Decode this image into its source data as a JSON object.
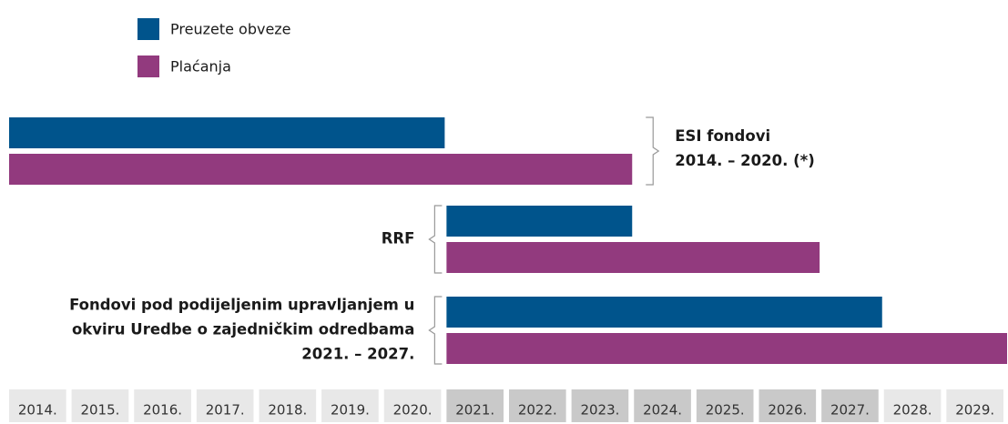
{
  "chart_data": {
    "type": "range-bar",
    "categories": [
      [
        "ESI fondovi",
        "2014. – 2020. (*)"
      ],
      [
        "RRF"
      ],
      [
        "Fondovi pod podijeljenim upravljanjem u",
        "okviru Uredbe o zajedničkim odredbama",
        "2021. – 2027."
      ]
    ],
    "series": [
      {
        "name": "Preuzete obveze",
        "color": "#00548c",
        "start": [
          2014,
          2021,
          2021
        ],
        "end": [
          2021,
          2024,
          2028
        ]
      },
      {
        "name": "Plaćanja",
        "color": "#923a7e",
        "start": [
          2014,
          2021,
          2021
        ],
        "end": [
          2024,
          2027,
          2030
        ]
      }
    ],
    "xlim": [
      2014,
      2030
    ],
    "xticks": [
      {
        "value": 2014,
        "label": "2014."
      },
      {
        "value": 2015,
        "label": "2015."
      },
      {
        "value": 2016,
        "label": "2016."
      },
      {
        "value": 2017,
        "label": "2017."
      },
      {
        "value": 2018,
        "label": "2018."
      },
      {
        "value": 2019,
        "label": "2019."
      },
      {
        "value": 2020,
        "label": "2020."
      },
      {
        "value": 2021,
        "label": "2021."
      },
      {
        "value": 2022,
        "label": "2022."
      },
      {
        "value": 2023,
        "label": "2023."
      },
      {
        "value": 2024,
        "label": "2024."
      },
      {
        "value": 2025,
        "label": "2025."
      },
      {
        "value": 2026,
        "label": "2026."
      },
      {
        "value": 2027,
        "label": "2027."
      },
      {
        "value": 2028,
        "label": "2028."
      },
      {
        "value": 2029,
        "label": "2029."
      }
    ],
    "highlight": [
      2021,
      2028
    ],
    "legend": "top-left"
  }
}
